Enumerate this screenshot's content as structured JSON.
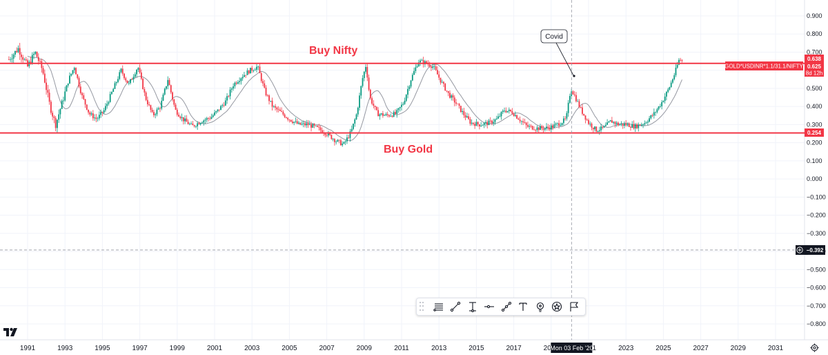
{
  "chart_data": {
    "type": "candlestick",
    "symbol_label": "GOLD*USDINR*1.1/31.1/NIFTY",
    "y_range": [
      -0.85,
      0.92
    ],
    "y_ticks": [
      "0.900",
      "0.800",
      "0.700",
      "0.600",
      "0.500",
      "0.400",
      "0.300",
      "0.200",
      "0.100",
      "0.000",
      "−0.100",
      "−0.200",
      "−0.300",
      "−0.400",
      "−0.500",
      "−0.600",
      "−0.700",
      "−0.800"
    ],
    "y_tick_values": [
      0.9,
      0.8,
      0.7,
      0.6,
      0.5,
      0.4,
      0.3,
      0.2,
      0.1,
      0.0,
      -0.1,
      -0.2,
      -0.3,
      -0.4,
      -0.5,
      -0.6,
      -0.7,
      -0.8
    ],
    "x_range": [
      1990.0,
      2032.0
    ],
    "x_ticks": [
      "1991",
      "1993",
      "1995",
      "1997",
      "1999",
      "2001",
      "2003",
      "2005",
      "2007",
      "2009",
      "2011",
      "2013",
      "2015",
      "2017",
      "2019",
      "2021",
      "2023",
      "2025",
      "2027",
      "2029",
      "2031"
    ],
    "x_tick_values": [
      1991,
      1993,
      1995,
      1997,
      1999,
      2001,
      2003,
      2005,
      2007,
      2009,
      2011,
      2013,
      2015,
      2017,
      2019,
      2021,
      2023,
      2025,
      2027,
      2029,
      2031
    ],
    "price_anchors": [
      [
        1990.0,
        0.66
      ],
      [
        1990.5,
        0.72
      ],
      [
        1991.0,
        0.62
      ],
      [
        1991.4,
        0.7
      ],
      [
        1991.8,
        0.6
      ],
      [
        1992.2,
        0.4
      ],
      [
        1992.5,
        0.3
      ],
      [
        1992.9,
        0.44
      ],
      [
        1993.2,
        0.55
      ],
      [
        1993.5,
        0.62
      ],
      [
        1993.9,
        0.46
      ],
      [
        1994.3,
        0.36
      ],
      [
        1994.7,
        0.33
      ],
      [
        1995.1,
        0.38
      ],
      [
        1995.6,
        0.5
      ],
      [
        1996.0,
        0.6
      ],
      [
        1996.4,
        0.52
      ],
      [
        1996.9,
        0.62
      ],
      [
        1997.3,
        0.45
      ],
      [
        1997.7,
        0.35
      ],
      [
        1998.1,
        0.4
      ],
      [
        1998.5,
        0.55
      ],
      [
        1998.9,
        0.38
      ],
      [
        1999.3,
        0.33
      ],
      [
        1999.8,
        0.29
      ],
      [
        2000.3,
        0.32
      ],
      [
        2000.8,
        0.34
      ],
      [
        2001.2,
        0.38
      ],
      [
        2001.6,
        0.43
      ],
      [
        2002.0,
        0.52
      ],
      [
        2002.5,
        0.57
      ],
      [
        2002.9,
        0.6
      ],
      [
        2003.3,
        0.62
      ],
      [
        2003.7,
        0.48
      ],
      [
        2004.1,
        0.4
      ],
      [
        2004.5,
        0.37
      ],
      [
        2005.0,
        0.33
      ],
      [
        2005.5,
        0.3
      ],
      [
        2006.0,
        0.3
      ],
      [
        2006.5,
        0.28
      ],
      [
        2007.0,
        0.25
      ],
      [
        2007.5,
        0.21
      ],
      [
        2007.9,
        0.19
      ],
      [
        2008.3,
        0.26
      ],
      [
        2008.6,
        0.36
      ],
      [
        2008.9,
        0.55
      ],
      [
        2009.1,
        0.63
      ],
      [
        2009.3,
        0.45
      ],
      [
        2009.7,
        0.36
      ],
      [
        2010.2,
        0.35
      ],
      [
        2010.7,
        0.36
      ],
      [
        2011.1,
        0.42
      ],
      [
        2011.5,
        0.55
      ],
      [
        2011.9,
        0.65
      ],
      [
        2012.3,
        0.64
      ],
      [
        2012.7,
        0.62
      ],
      [
        2013.1,
        0.54
      ],
      [
        2013.5,
        0.47
      ],
      [
        2013.9,
        0.42
      ],
      [
        2014.3,
        0.36
      ],
      [
        2014.7,
        0.31
      ],
      [
        2015.2,
        0.3
      ],
      [
        2015.7,
        0.31
      ],
      [
        2016.1,
        0.33
      ],
      [
        2016.5,
        0.38
      ],
      [
        2016.9,
        0.37
      ],
      [
        2017.3,
        0.33
      ],
      [
        2017.7,
        0.29
      ],
      [
        2018.2,
        0.28
      ],
      [
        2018.7,
        0.28
      ],
      [
        2019.1,
        0.29
      ],
      [
        2019.5,
        0.31
      ],
      [
        2019.8,
        0.33
      ],
      [
        2020.05,
        0.5
      ],
      [
        2020.25,
        0.46
      ],
      [
        2020.6,
        0.38
      ],
      [
        2021.0,
        0.31
      ],
      [
        2021.4,
        0.27
      ],
      [
        2021.8,
        0.28
      ],
      [
        2022.2,
        0.32
      ],
      [
        2022.6,
        0.3
      ],
      [
        2023.0,
        0.3
      ],
      [
        2023.5,
        0.29
      ],
      [
        2024.0,
        0.31
      ],
      [
        2024.5,
        0.36
      ],
      [
        2024.9,
        0.42
      ],
      [
        2025.3,
        0.5
      ],
      [
        2025.6,
        0.58
      ],
      [
        2025.85,
        0.66
      ],
      [
        2026.05,
        0.65
      ]
    ],
    "horizontal_lines": [
      {
        "value": 0.638,
        "color": "#f23645"
      },
      {
        "value": 0.254,
        "color": "#f23645"
      }
    ],
    "annotations": {
      "buy_nifty": "Buy Nifty",
      "buy_gold": "Buy Gold",
      "covid": "Covid"
    },
    "price_labels": {
      "upper_line": "0.638",
      "last_price": "0.625",
      "countdown": "8d 12h",
      "lower_line": "0.254",
      "crosshair_price": "−0.392"
    },
    "crosshair": {
      "x_value": 2020.09,
      "y_value": -0.392,
      "x_label": "Mon 03 Feb '20"
    },
    "colors": {
      "up": "#089981",
      "down": "#f23645",
      "ma": "#9598a1",
      "accent": "#f23645",
      "grid": "#f0f3fa"
    }
  },
  "toolbar": {
    "tools": [
      "horizontal-lines-icon",
      "trend-line-icon",
      "price-range-icon",
      "horizontal-ray-icon",
      "info-line-icon",
      "text-icon",
      "idea-bulb-icon",
      "star-badge-icon",
      "flag-icon"
    ]
  },
  "branding": {
    "logo": "tradingview-logo-icon",
    "settings": "gear-icon"
  }
}
